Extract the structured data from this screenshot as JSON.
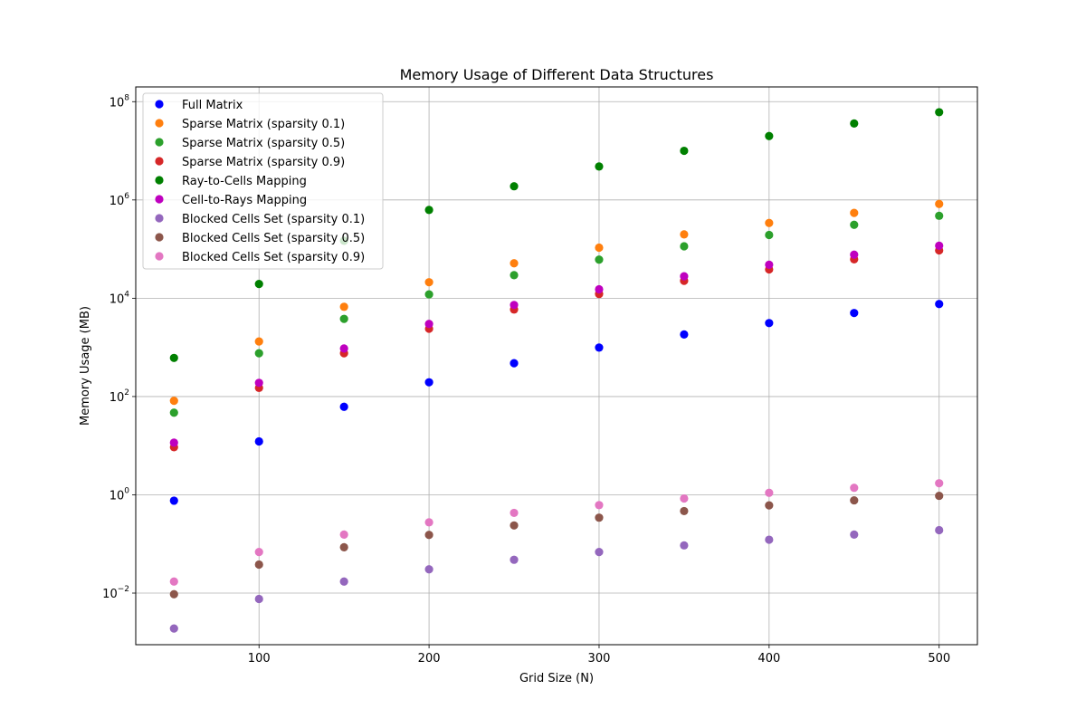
{
  "chart_data": {
    "type": "scatter",
    "title": "Memory Usage of Different Data Structures",
    "xlabel": "Grid Size (N)",
    "ylabel": "Memory Usage (MB)",
    "yscale": "log",
    "xlim": [
      27.5,
      522.5
    ],
    "ylim_log10": [
      -3.05,
      8.3
    ],
    "x_ticks": [
      100,
      200,
      300,
      400,
      500
    ],
    "y_ticks": [
      {
        "exp": -2,
        "base": "10",
        "sup": "−2"
      },
      {
        "exp": 0,
        "base": "10",
        "sup": "0"
      },
      {
        "exp": 2,
        "base": "10",
        "sup": "2"
      },
      {
        "exp": 4,
        "base": "10",
        "sup": "4"
      },
      {
        "exp": 6,
        "base": "10",
        "sup": "6"
      },
      {
        "exp": 8,
        "base": "10",
        "sup": "8"
      }
    ],
    "grid": true,
    "legend_position": "top-left",
    "x": [
      50,
      100,
      150,
      200,
      250,
      300,
      350,
      400,
      450,
      500
    ],
    "series": [
      {
        "name": "Full Matrix",
        "color": "#0000ff",
        "values": [
          0.76,
          12.2,
          61.8,
          195,
          477,
          989,
          1832,
          3125,
          5006,
          7629
        ]
      },
      {
        "name": "Sparse Matrix (sparsity 0.1)",
        "color": "#ff7f0e",
        "values": [
          82,
          1320,
          6700,
          21200,
          51500,
          107000,
          199000,
          340000,
          545000,
          830000
        ]
      },
      {
        "name": "Sparse Matrix (sparsity 0.5)",
        "color": "#2ca02c",
        "values": [
          47,
          760,
          3800,
          12000,
          29500,
          61000,
          114000,
          194000,
          312000,
          476000
        ]
      },
      {
        "name": "Sparse Matrix (sparsity 0.9)",
        "color": "#d62728",
        "values": [
          9.3,
          150,
          760,
          2400,
          5900,
          12200,
          22600,
          38600,
          62000,
          94000
        ]
      },
      {
        "name": "Ray-to-Cells Mapping",
        "color": "#008000",
        "values": [
          610,
          19500,
          148000,
          625000,
          1900000,
          4800000,
          10000000,
          20000000,
          36000000,
          61000000
        ]
      },
      {
        "name": "Cell-to-Rays Mapping",
        "color": "#bf00bf",
        "values": [
          11.5,
          190,
          950,
          3000,
          7300,
          15200,
          28000,
          48000,
          77000,
          117000
        ]
      },
      {
        "name": "Blocked Cells Set (sparsity 0.1)",
        "color": "#9467bd",
        "values": [
          0.0019,
          0.0076,
          0.0172,
          0.0305,
          0.0477,
          0.0687,
          0.0935,
          0.122,
          0.155,
          0.191
        ]
      },
      {
        "name": "Blocked Cells Set (sparsity 0.5)",
        "color": "#8c564b",
        "values": [
          0.0095,
          0.0381,
          0.0858,
          0.153,
          0.238,
          0.343,
          0.467,
          0.61,
          0.772,
          0.954
        ]
      },
      {
        "name": "Blocked Cells Set (sparsity 0.9)",
        "color": "#e377c2",
        "values": [
          0.0172,
          0.0687,
          0.155,
          0.275,
          0.429,
          0.618,
          0.841,
          1.1,
          1.39,
          1.72
        ]
      }
    ]
  }
}
